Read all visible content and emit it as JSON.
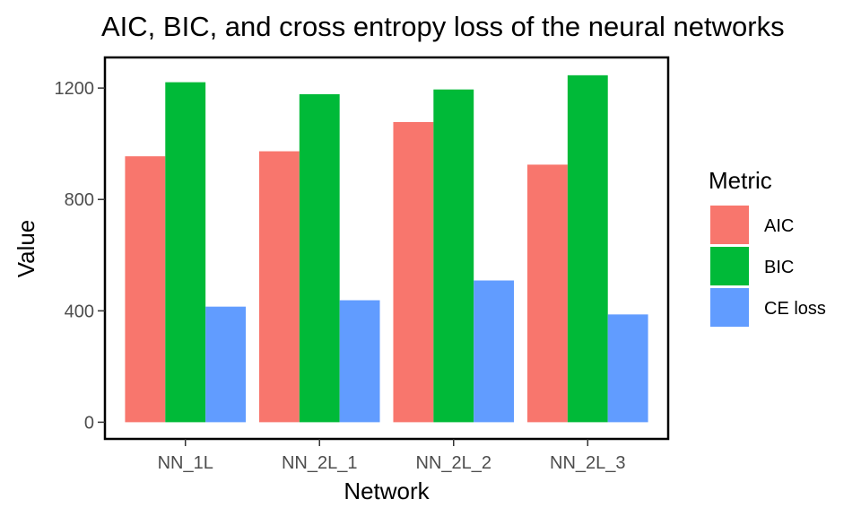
{
  "chart_data": {
    "type": "bar",
    "title": "AIC, BIC, and cross entropy loss of the neural networks",
    "xlabel": "Network",
    "ylabel": "Value",
    "categories": [
      "NN_1L",
      "NN_2L_1",
      "NN_2L_2",
      "NN_2L_3"
    ],
    "series": [
      {
        "name": "AIC",
        "color": "#F8766D",
        "values": [
          955,
          973,
          1078,
          925
        ]
      },
      {
        "name": "BIC",
        "color": "#00BA38",
        "values": [
          1221,
          1178,
          1195,
          1246
        ]
      },
      {
        "name": "CE loss",
        "color": "#619CFF",
        "values": [
          415,
          438,
          509,
          387
        ]
      }
    ],
    "yticks": [
      0,
      400,
      800,
      1200
    ],
    "ytick_labels": [
      "0",
      "400",
      "800",
      "1200"
    ],
    "ylim": [
      -60,
      1310
    ],
    "grid": false,
    "legend": {
      "title": "Metric",
      "placement": "right"
    }
  }
}
